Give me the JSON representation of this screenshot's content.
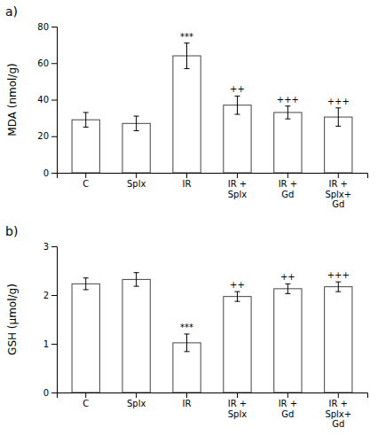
{
  "chart_data": [
    {
      "type": "bar",
      "title": "a)",
      "ylabel": "MDA (nmol/g)",
      "categories": [
        "C",
        "Splx",
        "IR",
        "IR +\nSplx",
        "IR +\nGd",
        "IR +\nSplx+\nGd"
      ],
      "values": [
        29.0,
        27.0,
        64.0,
        37.0,
        33.0,
        30.5
      ],
      "errors": [
        4.0,
        4.0,
        7.0,
        5.0,
        3.5,
        5.0
      ],
      "annotations": [
        null,
        null,
        "***",
        "++",
        "+++",
        "+++"
      ],
      "color": "#ffffff",
      "ylim": [
        0,
        80
      ],
      "yticks": [
        0,
        20,
        40,
        60,
        80
      ]
    },
    {
      "type": "bar",
      "title": "b)",
      "ylabel": "GSH (μmol/g)",
      "categories": [
        "C",
        "Splx",
        "IR",
        "IR +\nSplx",
        "IR +\nGd",
        "IR +\nSplx+\nGd"
      ],
      "values": [
        2.23,
        2.32,
        1.02,
        1.97,
        2.13,
        2.17
      ],
      "errors": [
        0.12,
        0.14,
        0.18,
        0.1,
        0.1,
        0.1
      ],
      "annotations": [
        null,
        null,
        "***",
        "++",
        "++",
        "+++"
      ],
      "color": "#ffffff",
      "ylim": [
        0,
        3
      ],
      "yticks": [
        0,
        1,
        2,
        3
      ]
    }
  ]
}
